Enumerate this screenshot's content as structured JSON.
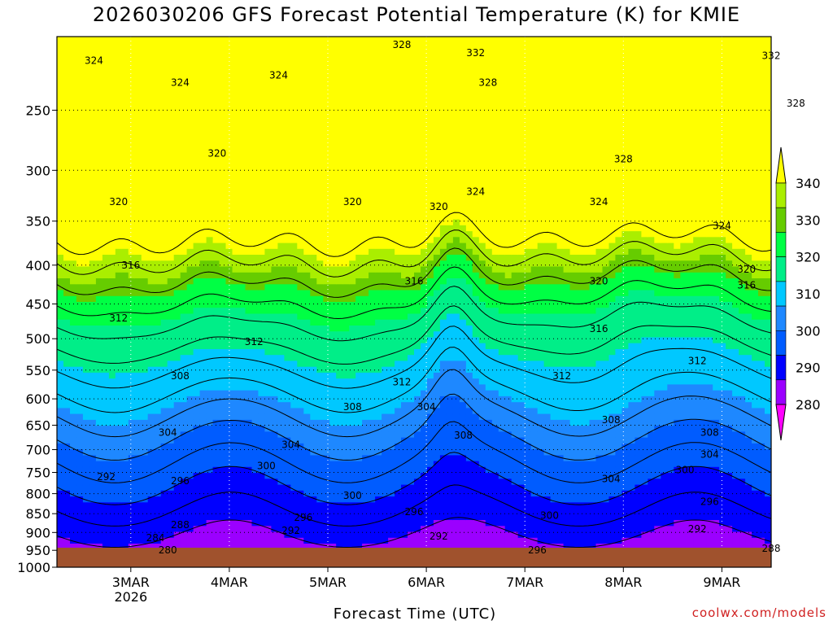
{
  "chart_data": {
    "type": "heatmap",
    "title": "2026030206 GFS Forecast Potential Temperature (K) for KMIE",
    "xlabel": "Forecast Time (UTC)",
    "ylabel": "",
    "credit": "coolwx.com/models",
    "x_ticks": [
      "3MAR",
      "4MAR",
      "5MAR",
      "6MAR",
      "7MAR",
      "8MAR",
      "9MAR"
    ],
    "x_tick_year": "2026",
    "y_ticks": [
      250,
      300,
      350,
      400,
      450,
      500,
      550,
      600,
      650,
      700,
      750,
      800,
      850,
      900,
      950,
      1000
    ],
    "ylim": [
      1000,
      200
    ],
    "y_scale": "log-pressure",
    "grid": true,
    "colorbar": {
      "ticks": [
        280,
        290,
        300,
        310,
        320,
        330,
        340
      ],
      "colors": [
        "#ff00ff",
        "#9b00ff",
        "#0000ff",
        "#005cff",
        "#1e88ff",
        "#00c8ff",
        "#00ee88",
        "#00ff44",
        "#66cc00",
        "#aaee00",
        "#ffff00"
      ]
    },
    "contour_labels": [
      {
        "x": "2MAR15",
        "p": 215,
        "label": "324"
      },
      {
        "x": "3MAR12",
        "p": 230,
        "label": "324"
      },
      {
        "x": "4MAR12",
        "p": 225,
        "label": "324"
      },
      {
        "x": "5MAR18",
        "p": 205,
        "label": "328"
      },
      {
        "x": "6MAR12",
        "p": 210,
        "label": "332"
      },
      {
        "x": "6MAR15",
        "p": 230,
        "label": "328"
      },
      {
        "x": "9MAR12",
        "p": 212,
        "label": "332"
      },
      {
        "x": "9MAR18",
        "p": 245,
        "label": "328"
      },
      {
        "x": "8MAR00",
        "p": 290,
        "label": "328"
      },
      {
        "x": "2MAR21",
        "p": 330,
        "label": "320"
      },
      {
        "x": "3MAR21",
        "p": 285,
        "label": "320"
      },
      {
        "x": "5MAR06",
        "p": 330,
        "label": "320"
      },
      {
        "x": "6MAR03",
        "p": 335,
        "label": "320"
      },
      {
        "x": "6MAR12",
        "p": 320,
        "label": "324"
      },
      {
        "x": "7MAR18",
        "p": 330,
        "label": "324"
      },
      {
        "x": "9MAR00",
        "p": 355,
        "label": "324"
      },
      {
        "x": "7MAR18",
        "p": 420,
        "label": "320"
      },
      {
        "x": "9MAR06",
        "p": 405,
        "label": "320"
      },
      {
        "x": "9MAR06",
        "p": 425,
        "label": "316"
      },
      {
        "x": "3MAR00",
        "p": 400,
        "label": "316"
      },
      {
        "x": "5MAR21",
        "p": 420,
        "label": "316"
      },
      {
        "x": "7MAR18",
        "p": 485,
        "label": "316"
      },
      {
        "x": "2MAR21",
        "p": 470,
        "label": "312"
      },
      {
        "x": "4MAR06",
        "p": 505,
        "label": "312"
      },
      {
        "x": "5MAR18",
        "p": 570,
        "label": "312"
      },
      {
        "x": "7MAR09",
        "p": 560,
        "label": "312"
      },
      {
        "x": "8MAR18",
        "p": 535,
        "label": "312"
      },
      {
        "x": "3MAR12",
        "p": 560,
        "label": "308"
      },
      {
        "x": "5MAR06",
        "p": 615,
        "label": "308"
      },
      {
        "x": "6MAR09",
        "p": 670,
        "label": "308"
      },
      {
        "x": "7MAR21",
        "p": 640,
        "label": "308"
      },
      {
        "x": "8MAR21",
        "p": 665,
        "label": "308"
      },
      {
        "x": "3MAR09",
        "p": 665,
        "label": "304"
      },
      {
        "x": "4MAR15",
        "p": 690,
        "label": "304"
      },
      {
        "x": "6MAR00",
        "p": 615,
        "label": "304"
      },
      {
        "x": "7MAR21",
        "p": 765,
        "label": "304"
      },
      {
        "x": "8MAR21",
        "p": 710,
        "label": "304"
      },
      {
        "x": "4MAR09",
        "p": 735,
        "label": "300"
      },
      {
        "x": "5MAR06",
        "p": 805,
        "label": "300"
      },
      {
        "x": "7MAR06",
        "p": 855,
        "label": "300"
      },
      {
        "x": "8MAR15",
        "p": 745,
        "label": "300"
      },
      {
        "x": "2MAR18",
        "p": 760,
        "label": "292"
      },
      {
        "x": "3MAR12",
        "p": 770,
        "label": "296"
      },
      {
        "x": "4MAR18",
        "p": 860,
        "label": "296"
      },
      {
        "x": "5MAR21",
        "p": 845,
        "label": "296"
      },
      {
        "x": "7MAR03",
        "p": 950,
        "label": "296"
      },
      {
        "x": "8MAR21",
        "p": 820,
        "label": "296"
      },
      {
        "x": "4MAR15",
        "p": 895,
        "label": "292"
      },
      {
        "x": "6MAR03",
        "p": 910,
        "label": "292"
      },
      {
        "x": "8MAR18",
        "p": 890,
        "label": "292"
      },
      {
        "x": "3MAR12",
        "p": 880,
        "label": "288"
      },
      {
        "x": "9MAR12",
        "p": 945,
        "label": "288"
      },
      {
        "x": "3MAR06",
        "p": 915,
        "label": "284"
      },
      {
        "x": "3MAR09",
        "p": 950,
        "label": "280"
      }
    ]
  }
}
